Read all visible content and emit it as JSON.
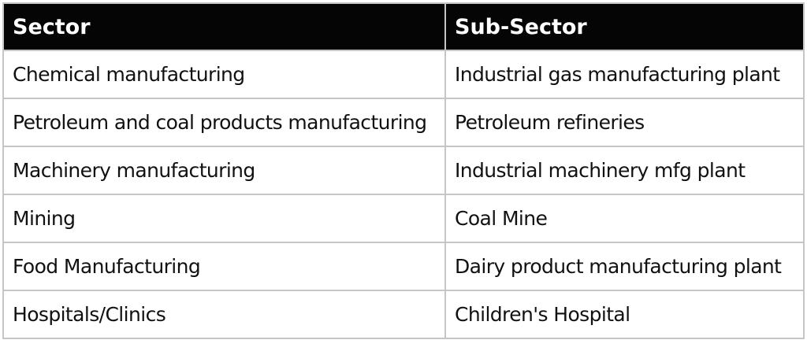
{
  "table": {
    "headers": [
      "Sector",
      "Sub-Sector"
    ],
    "rows": [
      [
        "Chemical manufacturing",
        "Industrial gas manufacturing plant"
      ],
      [
        "Petroleum and coal products manufacturing",
        "Petroleum refineries"
      ],
      [
        "Machinery manufacturing",
        "Industrial machinery mfg plant"
      ],
      [
        "Mining",
        "Coal Mine"
      ],
      [
        "Food Manufacturing",
        "Dairy product manufacturing plant"
      ],
      [
        "Hospitals/Clinics",
        "Children's Hospital"
      ]
    ]
  }
}
